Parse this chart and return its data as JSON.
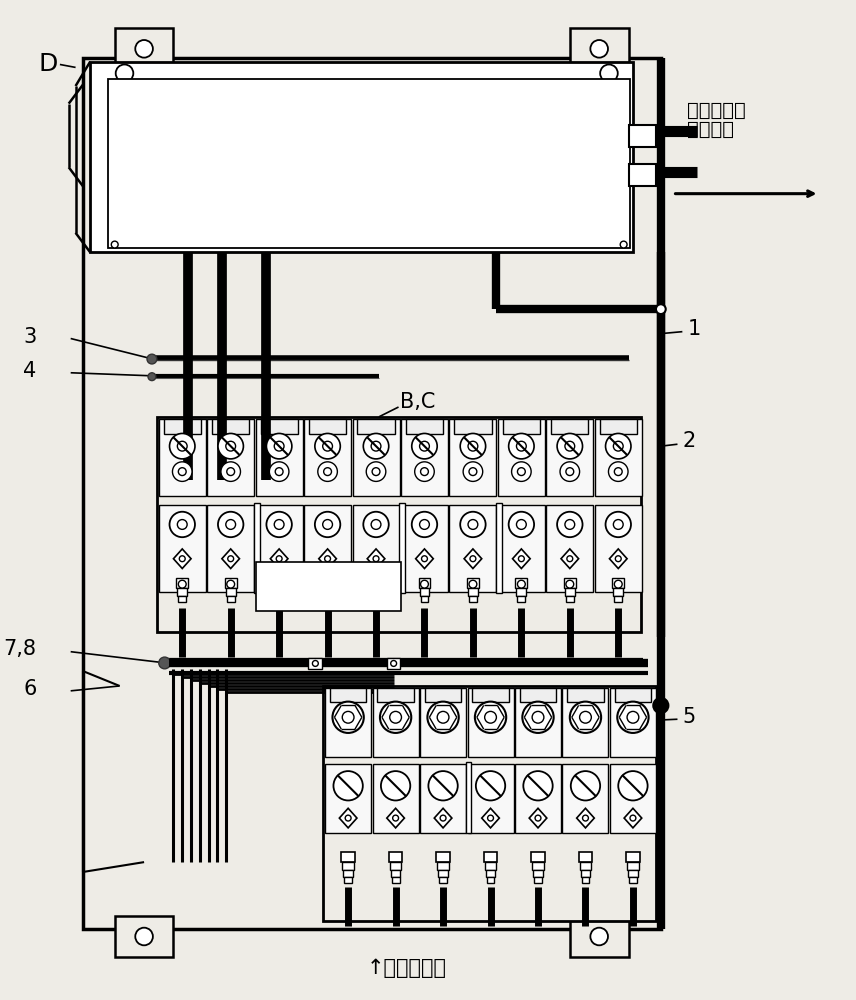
{
  "bg_color": "#eeece6",
  "line_color": "#000000",
  "title_right_1": "到船上检测",
  "title_right_2": "报警系统",
  "bottom_label": "↑来自测量点",
  "label_D": "D",
  "label_1": "1",
  "label_2": "2",
  "label_3": "3",
  "label_4": "4",
  "label_5": "5",
  "label_6": "6",
  "label_78": "7,8",
  "label_BC": "B,C",
  "label_fontsize": 15,
  "chinese_fontsize": 14
}
